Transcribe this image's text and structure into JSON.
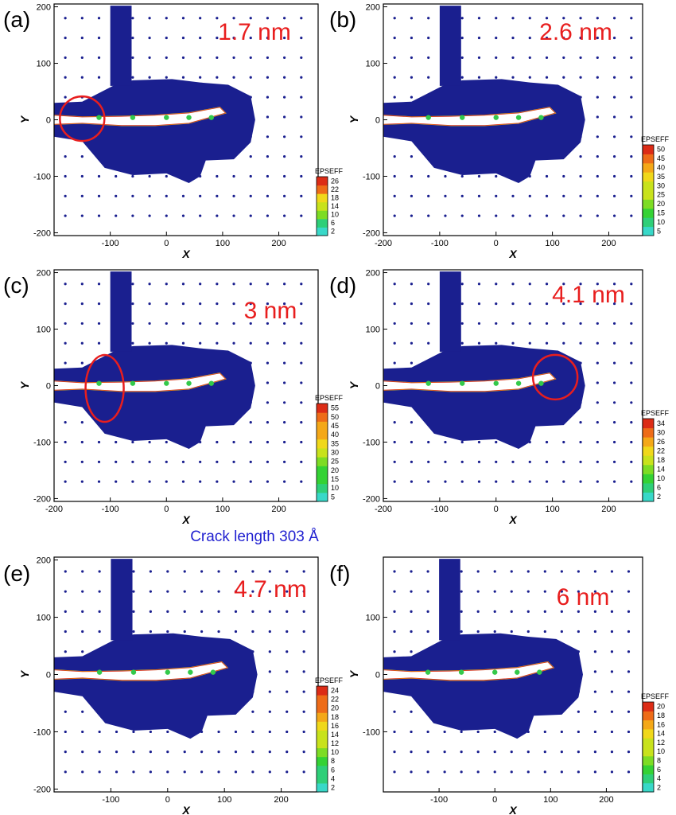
{
  "figure": {
    "caption": "Crack length 303 Å",
    "caption_color": "#1f1fd0",
    "colors": {
      "plot_fill": "#1a1f8f",
      "crack": "#ffffff",
      "edge_green": "#33c94a",
      "edge_yellow": "#e8d21a",
      "edge_red": "#d83018",
      "label_red": "#e81e1e"
    }
  },
  "chart_data": [
    {
      "panel": "(a)",
      "type": "heatmap",
      "title": "1.7 nm",
      "xlabel": "X",
      "ylabel": "Y",
      "xlim": [
        -200,
        270
      ],
      "ylim": [
        -205,
        205
      ],
      "xticks": [
        "-100",
        "0",
        "100",
        "200"
      ],
      "yticks": [
        "200",
        "100",
        "0",
        "-100",
        "-200"
      ],
      "legend": {
        "title": "EPSEFF",
        "levels": [
          "2",
          "6",
          "10",
          "14",
          "18",
          "22",
          "26"
        ]
      },
      "annotation": {
        "shape": "circle",
        "x": -150,
        "y": 2
      }
    },
    {
      "panel": "(b)",
      "type": "heatmap",
      "title": "2.6 nm",
      "xlabel": "X",
      "ylabel": "Y",
      "xlim": [
        -200,
        260
      ],
      "ylim": [
        -205,
        205
      ],
      "xticks": [
        "-200",
        "-100",
        "0",
        "100",
        "200"
      ],
      "yticks": [
        "200",
        "100",
        "0",
        "-100",
        "-200"
      ],
      "legend": {
        "title": "EPSEFF",
        "levels": [
          "5",
          "10",
          "15",
          "20",
          "25",
          "30",
          "35",
          "40",
          "45",
          "50"
        ]
      }
    },
    {
      "panel": "(c)",
      "type": "heatmap",
      "title": "3 nm",
      "xlabel": "X",
      "ylabel": "Y",
      "xlim": [
        -200,
        270
      ],
      "ylim": [
        -205,
        205
      ],
      "xticks": [
        "-200",
        "-100",
        "0",
        "100",
        "200"
      ],
      "yticks": [
        "200",
        "100",
        "0",
        "-100",
        "-200"
      ],
      "legend": {
        "title": "EPSEFF",
        "levels": [
          "5",
          "10",
          "15",
          "20",
          "25",
          "30",
          "35",
          "40",
          "45",
          "50",
          "55"
        ]
      },
      "annotation": {
        "shape": "ellipse",
        "x": -110,
        "y": -5
      }
    },
    {
      "panel": "(d)",
      "type": "heatmap",
      "title": "4.1 nm",
      "xlabel": "X",
      "ylabel": "Y",
      "xlim": [
        -200,
        260
      ],
      "ylim": [
        -205,
        205
      ],
      "xticks": [
        "-200",
        "-100",
        "0",
        "100",
        "200"
      ],
      "yticks": [
        "200",
        "100",
        "0",
        "-100",
        "-200"
      ],
      "legend": {
        "title": "EPSEFF",
        "levels": [
          "2",
          "6",
          "10",
          "14",
          "18",
          "22",
          "26",
          "30",
          "34"
        ]
      },
      "annotation": {
        "shape": "circle",
        "x": 105,
        "y": 15
      }
    },
    {
      "panel": "(e)",
      "type": "heatmap",
      "title": "4.7 nm",
      "xlabel": "X",
      "ylabel": "Y",
      "xlim": [
        -200,
        265
      ],
      "ylim": [
        -205,
        205
      ],
      "xticks": [
        "-100",
        "0",
        "100",
        "200"
      ],
      "yticks": [
        "200",
        "100",
        "0",
        "-100",
        "-200"
      ],
      "legend": {
        "title": "EPSEFF",
        "levels": [
          "2",
          "4",
          "6",
          "8",
          "10",
          "12",
          "14",
          "16",
          "18",
          "20",
          "22",
          "24"
        ]
      }
    },
    {
      "panel": "(f)",
      "type": "heatmap",
      "title": "6 nm",
      "xlabel": "X",
      "ylabel": "Y",
      "xlim": [
        -200,
        265
      ],
      "ylim": [
        -205,
        205
      ],
      "xticks": [
        "-100",
        "0",
        "100",
        "200"
      ],
      "yticks": [
        "100",
        "0",
        "-100"
      ],
      "legend": {
        "title": "EPSEFF",
        "levels": [
          "2",
          "4",
          "6",
          "8",
          "10",
          "12",
          "14",
          "16",
          "18",
          "20"
        ]
      }
    }
  ]
}
